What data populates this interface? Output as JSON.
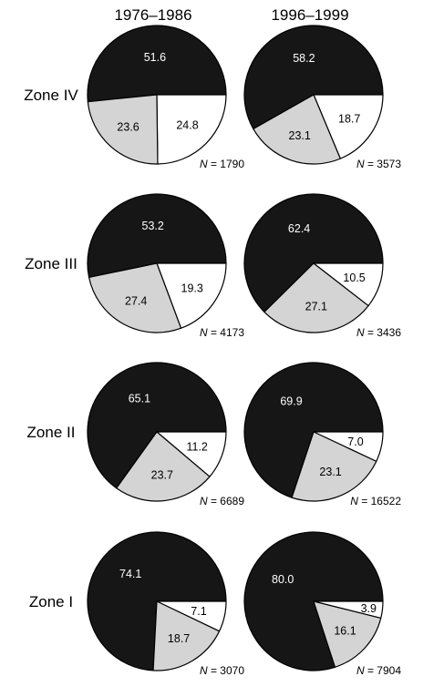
{
  "colors": {
    "dark": "#161616",
    "gray": "#d4d4d4",
    "light": "#ffffff",
    "stroke": "#000000"
  },
  "chart_data": {
    "type": "pie",
    "columns": [
      "1976–1986",
      "1996–1999"
    ],
    "rows": [
      "Zone IV",
      "Zone III",
      "Zone II",
      "Zone I"
    ],
    "series_colors": [
      "dark",
      "light",
      "gray"
    ],
    "n_prefix": "N",
    "pies": [
      {
        "zone": "Zone IV",
        "period": "1976–1986",
        "values": [
          51.6,
          24.8,
          23.6
        ],
        "labels": [
          "51.6",
          "24.8",
          "23.6"
        ],
        "n_text": "= 1790"
      },
      {
        "zone": "Zone IV",
        "period": "1996–1999",
        "values": [
          58.2,
          18.7,
          23.1
        ],
        "labels": [
          "58.2",
          "18.7",
          "23.1"
        ],
        "n_text": "= 3573"
      },
      {
        "zone": "Zone III",
        "period": "1976–1986",
        "values": [
          53.2,
          19.3,
          27.4
        ],
        "labels": [
          "53.2",
          "19.3",
          "27.4"
        ],
        "n_text": "= 4173"
      },
      {
        "zone": "Zone III",
        "period": "1996–1999",
        "values": [
          62.4,
          10.5,
          27.1
        ],
        "labels": [
          "62.4",
          "10.5",
          "27.1"
        ],
        "n_text": "= 3436"
      },
      {
        "zone": "Zone II",
        "period": "1976–1986",
        "values": [
          65.1,
          11.2,
          23.7
        ],
        "labels": [
          "65.1",
          "11.2",
          "23.7"
        ],
        "n_text": "= 6689"
      },
      {
        "zone": "Zone II",
        "period": "1996–1999",
        "values": [
          69.9,
          7.0,
          23.1
        ],
        "labels": [
          "69.9",
          "7.0",
          "23.1"
        ],
        "n_text": "= 16522"
      },
      {
        "zone": "Zone I",
        "period": "1976–1986",
        "values": [
          74.1,
          7.1,
          18.7
        ],
        "labels": [
          "74.1",
          "7.1",
          "18.7"
        ],
        "n_text": "= 3070"
      },
      {
        "zone": "Zone I",
        "period": "1996–1999",
        "values": [
          80.0,
          3.9,
          16.1
        ],
        "labels": [
          "80.0",
          "3.9",
          "16.1"
        ],
        "n_text": "= 7904"
      }
    ]
  }
}
